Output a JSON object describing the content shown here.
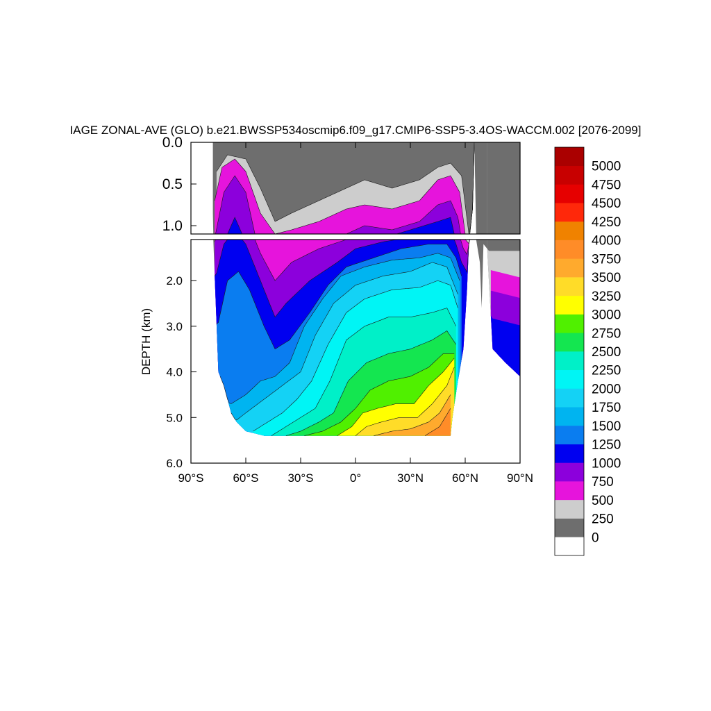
{
  "chart_data": {
    "type": "heatmap",
    "title": "IAGE ZONAL-AVE (GLO) b.e21.BWSSP534oscmip6.f09_g17.CMIP6-SSP5-3.4OS-WACCM.002 [2076-2099]",
    "ylabel": "DEPTH (km)",
    "xlabel": "",
    "xlim": [
      -90,
      90
    ],
    "ylim_upper": [
      0.0,
      1.1
    ],
    "ylim_lower": [
      1.1,
      6.0
    ],
    "x_ticks": [
      {
        "value": -90,
        "label": "90°S"
      },
      {
        "value": -60,
        "label": "60°S"
      },
      {
        "value": -30,
        "label": "30°S"
      },
      {
        "value": 0,
        "label": "0°"
      },
      {
        "value": 30,
        "label": "30°N"
      },
      {
        "value": 60,
        "label": "60°N"
      },
      {
        "value": 90,
        "label": "90°N"
      }
    ],
    "y_ticks_upper": [
      {
        "value": 0.0,
        "label": "0.0"
      },
      {
        "value": 0.5,
        "label": "0.5"
      },
      {
        "value": 1.0,
        "label": "1.0"
      }
    ],
    "y_ticks_lower": [
      {
        "value": 2.0,
        "label": "2.0"
      },
      {
        "value": 3.0,
        "label": "3.0"
      },
      {
        "value": 4.0,
        "label": "4.0"
      },
      {
        "value": 5.0,
        "label": "5.0"
      },
      {
        "value": 6.0,
        "label": "6.0"
      }
    ],
    "levels": [
      0,
      250,
      500,
      750,
      1000,
      1250,
      1500,
      1750,
      2000,
      2250,
      2500,
      2750,
      3000,
      3250,
      3500,
      3750,
      4000,
      4250,
      4500,
      4750,
      5000
    ],
    "level_labels": [
      "0",
      "250",
      "500",
      "750",
      "1000",
      "1250",
      "1500",
      "1750",
      "2000",
      "2250",
      "2500",
      "2750",
      "3000",
      "3250",
      "3500",
      "3750",
      "4000",
      "4250",
      "4500",
      "4750",
      "5000"
    ],
    "colors": [
      "#ffffff",
      "#6e6e6e",
      "#cdcdcd",
      "#e614dc",
      "#8c00dc",
      "#0000f0",
      "#0a7df0",
      "#00b4f0",
      "#14d2f5",
      "#00f5f5",
      "#00f0c8",
      "#14e650",
      "#50f000",
      "#ffff00",
      "#ffdc28",
      "#ffaa2d",
      "#ff8c28",
      "#f08200",
      "#ff280a",
      "#e60000",
      "#c80000",
      "#aa0000"
    ],
    "ocean_floor": [
      [
        -78,
        0.85
      ],
      [
        -75,
        4.0
      ],
      [
        -72,
        4.3
      ],
      [
        -68,
        4.9
      ],
      [
        -65,
        5.1
      ],
      [
        -60,
        5.3
      ],
      [
        -55,
        5.35
      ],
      [
        -50,
        5.4
      ],
      [
        -45,
        5.4
      ],
      [
        -30,
        5.4
      ],
      [
        -10,
        5.4
      ],
      [
        0,
        5.4
      ],
      [
        20,
        5.4
      ],
      [
        35,
        5.4
      ],
      [
        52,
        5.4
      ],
      [
        53,
        5.0
      ],
      [
        56,
        4.2
      ],
      [
        59,
        3.5
      ],
      [
        61,
        2.2
      ],
      [
        62,
        1.2
      ],
      [
        64,
        0.8
      ],
      [
        65,
        0.0
      ]
    ],
    "arctic_floor": [
      [
        72,
        1.3
      ],
      [
        75,
        3.5
      ],
      [
        82,
        3.8
      ],
      [
        90,
        4.1
      ]
    ],
    "contours": [
      {
        "level": 250,
        "path": [
          [
            -76,
            0.35
          ],
          [
            -70,
            0.15
          ],
          [
            -60,
            0.2
          ],
          [
            -52,
            0.55
          ],
          [
            -44,
            0.95
          ],
          [
            -35,
            0.85
          ],
          [
            -20,
            0.7
          ],
          [
            -5,
            0.55
          ],
          [
            5,
            0.45
          ],
          [
            20,
            0.55
          ],
          [
            35,
            0.45
          ],
          [
            45,
            0.3
          ],
          [
            52,
            0.25
          ],
          [
            58,
            0.4
          ],
          [
            62,
            1.1
          ],
          [
            65,
            1.3
          ],
          [
            75,
            1.3
          ],
          [
            90,
            1.3
          ]
        ]
      },
      {
        "level": 500,
        "path": [
          [
            -77,
            0.7
          ],
          [
            -73,
            0.3
          ],
          [
            -66,
            0.2
          ],
          [
            -60,
            0.35
          ],
          [
            -52,
            0.85
          ],
          [
            -44,
            1.1
          ],
          [
            -35,
            1.05
          ],
          [
            -20,
            0.95
          ],
          [
            -5,
            0.8
          ],
          [
            5,
            0.75
          ],
          [
            20,
            0.8
          ],
          [
            35,
            0.7
          ],
          [
            45,
            0.45
          ],
          [
            52,
            0.4
          ],
          [
            57,
            0.6
          ],
          [
            60,
            1.1
          ],
          [
            75,
            1.75
          ],
          [
            90,
            1.8
          ]
        ]
      },
      {
        "level": 750,
        "path": [
          [
            -77,
            1.15
          ],
          [
            -72,
            0.6
          ],
          [
            -66,
            0.4
          ],
          [
            -60,
            0.6
          ],
          [
            -52,
            1.4
          ],
          [
            -44,
            2.0
          ],
          [
            -35,
            1.6
          ],
          [
            -20,
            1.3
          ],
          [
            -5,
            1.1
          ],
          [
            5,
            1.0
          ],
          [
            20,
            1.05
          ],
          [
            35,
            0.95
          ],
          [
            45,
            0.75
          ],
          [
            52,
            0.7
          ],
          [
            56,
            0.9
          ],
          [
            59,
            1.3
          ],
          [
            75,
            2.3
          ],
          [
            90,
            2.4
          ]
        ]
      },
      {
        "level": 1000,
        "path": [
          [
            -77,
            2.0
          ],
          [
            -72,
            1.2
          ],
          [
            -66,
            0.9
          ],
          [
            -60,
            1.2
          ],
          [
            -52,
            2.0
          ],
          [
            -44,
            2.8
          ],
          [
            -38,
            2.5
          ],
          [
            -25,
            2.0
          ],
          [
            -10,
            1.6
          ],
          [
            0,
            1.3
          ],
          [
            15,
            1.15
          ],
          [
            30,
            1.05
          ],
          [
            45,
            0.95
          ],
          [
            52,
            0.9
          ],
          [
            55,
            1.2
          ],
          [
            58,
            1.6
          ],
          [
            75,
            2.8
          ],
          [
            90,
            3.0
          ]
        ]
      },
      {
        "level": 1250,
        "path": [
          [
            -76,
            3.1
          ],
          [
            -70,
            2.0
          ],
          [
            -64,
            1.8
          ],
          [
            -58,
            2.2
          ],
          [
            -50,
            3.0
          ],
          [
            -44,
            3.5
          ],
          [
            -36,
            3.3
          ],
          [
            -25,
            2.7
          ],
          [
            -15,
            2.1
          ],
          [
            -5,
            1.7
          ],
          [
            10,
            1.5
          ],
          [
            25,
            1.3
          ],
          [
            40,
            1.2
          ],
          [
            50,
            1.2
          ],
          [
            55,
            1.5
          ],
          [
            58,
            1.9
          ]
        ]
      },
      {
        "level": 1500,
        "path": [
          [
            -74,
            4.6
          ],
          [
            -68,
            4.7
          ],
          [
            -60,
            4.5
          ],
          [
            -52,
            4.2
          ],
          [
            -44,
            4.1
          ],
          [
            -36,
            3.8
          ],
          [
            -28,
            3.0
          ],
          [
            -18,
            2.4
          ],
          [
            -8,
            1.9
          ],
          [
            5,
            1.7
          ],
          [
            20,
            1.55
          ],
          [
            35,
            1.5
          ],
          [
            45,
            1.4
          ],
          [
            52,
            1.5
          ],
          [
            57,
            2.0
          ]
        ]
      },
      {
        "level": 1750,
        "path": [
          [
            -68,
            5.15
          ],
          [
            -60,
            4.9
          ],
          [
            -50,
            4.6
          ],
          [
            -40,
            4.3
          ],
          [
            -30,
            4.0
          ],
          [
            -22,
            3.2
          ],
          [
            -12,
            2.5
          ],
          [
            0,
            2.1
          ],
          [
            15,
            1.9
          ],
          [
            30,
            1.8
          ],
          [
            42,
            1.6
          ],
          [
            50,
            1.7
          ],
          [
            56,
            2.3
          ]
        ]
      },
      {
        "level": 2000,
        "path": [
          [
            -56,
            5.3
          ],
          [
            -48,
            5.1
          ],
          [
            -40,
            4.9
          ],
          [
            -32,
            4.6
          ],
          [
            -24,
            4.2
          ],
          [
            -15,
            3.4
          ],
          [
            -5,
            2.7
          ],
          [
            5,
            2.4
          ],
          [
            20,
            2.2
          ],
          [
            35,
            2.15
          ],
          [
            45,
            2.0
          ],
          [
            52,
            2.1
          ],
          [
            56,
            2.6
          ]
        ]
      },
      {
        "level": 2250,
        "path": [
          [
            -46,
            5.4
          ],
          [
            -38,
            5.2
          ],
          [
            -30,
            5.0
          ],
          [
            -22,
            4.8
          ],
          [
            -14,
            4.2
          ],
          [
            -5,
            3.3
          ],
          [
            5,
            3.0
          ],
          [
            18,
            2.8
          ],
          [
            30,
            2.8
          ],
          [
            42,
            2.7
          ],
          [
            50,
            2.6
          ],
          [
            55,
            3.0
          ]
        ]
      },
      {
        "level": 2500,
        "path": [
          [
            -38,
            5.4
          ],
          [
            -30,
            5.3
          ],
          [
            -20,
            5.1
          ],
          [
            -12,
            4.9
          ],
          [
            -4,
            4.2
          ],
          [
            6,
            3.8
          ],
          [
            18,
            3.6
          ],
          [
            30,
            3.5
          ],
          [
            42,
            3.3
          ],
          [
            50,
            3.1
          ],
          [
            55,
            3.4
          ]
        ]
      },
      {
        "level": 2750,
        "path": [
          [
            -28,
            5.4
          ],
          [
            -18,
            5.3
          ],
          [
            -8,
            5.1
          ],
          [
            0,
            4.8
          ],
          [
            8,
            4.4
          ],
          [
            18,
            4.2
          ],
          [
            30,
            4.1
          ],
          [
            40,
            3.9
          ],
          [
            48,
            3.6
          ],
          [
            54,
            3.6
          ]
        ]
      },
      {
        "level": 3000,
        "path": [
          [
            -10,
            5.4
          ],
          [
            -2,
            5.2
          ],
          [
            4,
            4.9
          ],
          [
            12,
            4.8
          ],
          [
            22,
            4.7
          ],
          [
            32,
            4.7
          ],
          [
            40,
            4.3
          ],
          [
            48,
            4.0
          ],
          [
            54,
            3.7
          ]
        ]
      },
      {
        "level": 3250,
        "path": [
          [
            0,
            5.4
          ],
          [
            6,
            5.2
          ],
          [
            14,
            5.1
          ],
          [
            24,
            5.0
          ],
          [
            34,
            5.0
          ],
          [
            42,
            4.7
          ],
          [
            50,
            4.3
          ],
          [
            54,
            3.9
          ]
        ]
      },
      {
        "level": 3500,
        "path": [
          [
            10,
            5.4
          ],
          [
            20,
            5.3
          ],
          [
            30,
            5.25
          ],
          [
            40,
            5.1
          ],
          [
            46,
            4.9
          ],
          [
            52,
            4.5
          ]
        ]
      },
      {
        "level": 3750,
        "path": [
          [
            38,
            5.4
          ],
          [
            46,
            5.2
          ],
          [
            52,
            4.8
          ]
        ]
      }
    ]
  }
}
